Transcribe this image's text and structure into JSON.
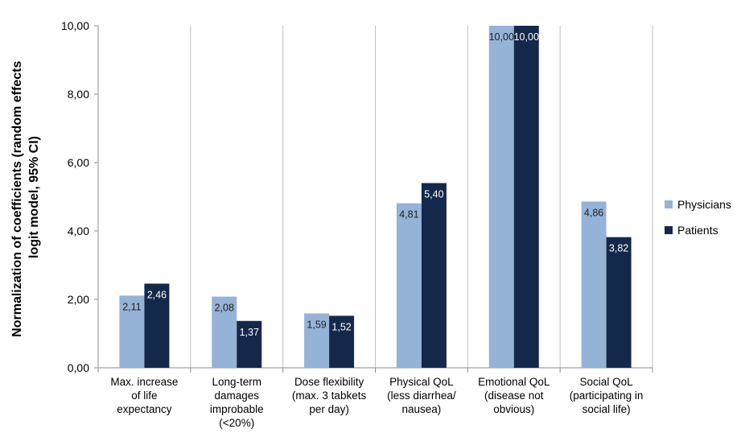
{
  "chart_data": {
    "type": "bar",
    "ylabel_lines": [
      "Normalization of coefficients (random effects",
      "logit model, 95% CI)"
    ],
    "xlabel": "",
    "ylim": [
      0,
      10
    ],
    "yticks": [
      "0,00",
      "2,00",
      "4,00",
      "6,00",
      "8,00",
      "10,00"
    ],
    "ytick_values": [
      0,
      2,
      4,
      6,
      8,
      10
    ],
    "grid": "vertical",
    "legend_position": "right",
    "categories": [
      [
        "Max. increase",
        "of life",
        "expectancy"
      ],
      [
        "Long-term",
        "damages",
        "improbable",
        "(<20%)"
      ],
      [
        "Dose flexibility",
        "(max. 3 tabkets",
        "per day)"
      ],
      [
        "Physical QoL",
        "(less diarrhea/",
        "nausea)"
      ],
      [
        "Emotional QoL",
        "(disease not",
        "obvious)"
      ],
      [
        "Social QoL",
        "(participating in",
        "social life)"
      ]
    ],
    "series": [
      {
        "name": "Physicians",
        "color": "#95b3d7",
        "label_color": "#1f1f1f",
        "values": [
          2.11,
          2.08,
          1.59,
          4.81,
          10.0,
          4.86
        ],
        "labels": [
          "2,11",
          "2,08",
          "1,59",
          "4,81",
          "10,00",
          "4,86"
        ]
      },
      {
        "name": "Patients",
        "color": "#14284b",
        "label_color": "#ffffff",
        "values": [
          2.46,
          1.37,
          1.52,
          5.4,
          10.0,
          3.82
        ],
        "labels": [
          "2,46",
          "1,37",
          "1,52",
          "5,40",
          "10,00",
          "3,82"
        ]
      }
    ]
  }
}
